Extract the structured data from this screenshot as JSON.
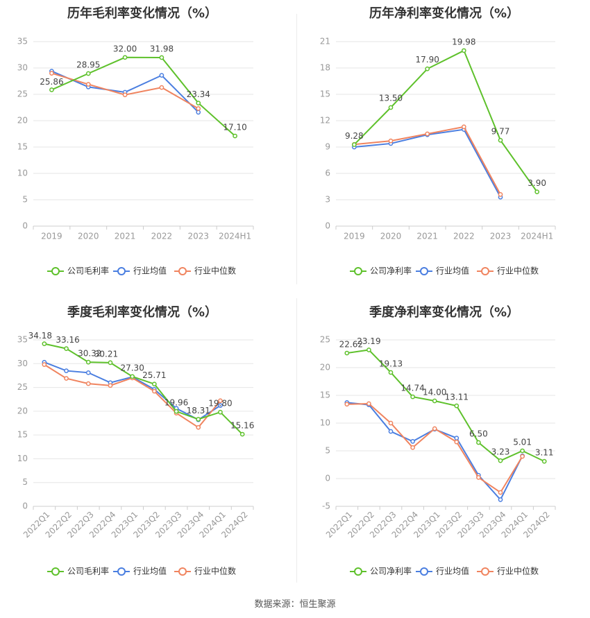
{
  "colors": {
    "company": "#5ec12b",
    "industry_avg": "#4a7ee0",
    "industry_median": "#f0845f",
    "grid": "#e6e6e6",
    "axis_text": "#999999",
    "label_text": "#444444",
    "title_text": "#333333"
  },
  "source_text": "数据来源：恒生聚源",
  "chart_data": [
    {
      "type": "line",
      "title": "历年毛利率变化情况（%）",
      "categories": [
        "2019",
        "2020",
        "2021",
        "2022",
        "2023",
        "2024H1"
      ],
      "ylim": [
        0,
        35
      ],
      "yticks": [
        0,
        5,
        10,
        15,
        20,
        25,
        30,
        35
      ],
      "series": [
        {
          "name": "公司毛利率",
          "key": "company",
          "values": [
            25.86,
            28.95,
            32.0,
            31.98,
            23.34,
            17.1
          ],
          "labels": [
            "25.86",
            "28.95",
            "32.00",
            "31.98",
            "23.34",
            "17.10"
          ]
        },
        {
          "name": "行业均值",
          "key": "industry_avg",
          "values": [
            29.4,
            26.4,
            25.4,
            28.6,
            21.6,
            null
          ]
        },
        {
          "name": "行业中位数",
          "key": "industry_median",
          "values": [
            29.0,
            26.9,
            24.9,
            26.3,
            22.3,
            null
          ]
        }
      ]
    },
    {
      "type": "line",
      "title": "历年净利率变化情况（%）",
      "categories": [
        "2019",
        "2020",
        "2021",
        "2022",
        "2023",
        "2024H1"
      ],
      "ylim": [
        0,
        21
      ],
      "yticks": [
        0,
        3,
        6,
        9,
        12,
        15,
        18,
        21
      ],
      "series": [
        {
          "name": "公司净利率",
          "key": "company",
          "values": [
            9.28,
            13.5,
            17.9,
            19.98,
            9.77,
            3.9
          ],
          "labels": [
            "9.28",
            "13.50",
            "17.90",
            "19.98",
            "9.77",
            "3.90"
          ]
        },
        {
          "name": "行业均值",
          "key": "industry_avg",
          "values": [
            9.0,
            9.4,
            10.4,
            11.0,
            3.3,
            null
          ]
        },
        {
          "name": "行业中位数",
          "key": "industry_median",
          "values": [
            9.3,
            9.7,
            10.5,
            11.3,
            3.6,
            null
          ]
        }
      ]
    },
    {
      "type": "line",
      "title": "季度毛利率变化情况（%）",
      "categories": [
        "2022Q1",
        "2022Q2",
        "2022Q3",
        "2022Q4",
        "2023Q1",
        "2023Q2",
        "2023Q3",
        "2023Q4",
        "2024Q1",
        "2024Q2"
      ],
      "ylim": [
        0,
        35
      ],
      "yticks": [
        0,
        5,
        10,
        15,
        20,
        25,
        30,
        35
      ],
      "rotate_xticks": true,
      "series": [
        {
          "name": "公司毛利率",
          "key": "company",
          "values": [
            34.18,
            33.16,
            30.32,
            30.21,
            27.3,
            25.71,
            19.96,
            18.31,
            19.8,
            15.16
          ],
          "labels": [
            "34.18",
            "33.16",
            "30.32",
            "30.21",
            "27.30",
            "25.71",
            "19.96",
            "18.31",
            "19.80",
            "15.16"
          ]
        },
        {
          "name": "行业均值",
          "key": "industry_avg",
          "values": [
            30.3,
            28.5,
            28.1,
            26.0,
            27.2,
            24.6,
            20.6,
            18.2,
            21.2,
            null
          ]
        },
        {
          "name": "行业中位数",
          "key": "industry_median",
          "values": [
            29.8,
            26.9,
            25.8,
            25.4,
            27.0,
            24.2,
            19.6,
            16.6,
            22.2,
            null
          ]
        }
      ]
    },
    {
      "type": "line",
      "title": "季度净利率变化情况（%）",
      "categories": [
        "2022Q1",
        "2022Q2",
        "2022Q3",
        "2022Q4",
        "2023Q1",
        "2023Q2",
        "2023Q3",
        "2023Q4",
        "2024Q1",
        "2024Q2"
      ],
      "ylim": [
        -5,
        25
      ],
      "yticks": [
        -5,
        0,
        5,
        10,
        15,
        20,
        25
      ],
      "rotate_xticks": true,
      "series": [
        {
          "name": "公司净利率",
          "key": "company",
          "values": [
            22.62,
            23.19,
            19.13,
            14.74,
            14.0,
            13.11,
            6.5,
            3.23,
            5.01,
            3.11
          ],
          "labels": [
            "22.62",
            "23.19",
            "19.13",
            "14.74",
            "14.00",
            "13.11",
            "6.50",
            "3.23",
            "5.01",
            "3.11"
          ]
        },
        {
          "name": "行业均值",
          "key": "industry_avg",
          "values": [
            13.7,
            13.3,
            8.5,
            6.7,
            8.9,
            7.3,
            0.6,
            -3.8,
            4.1,
            null
          ]
        },
        {
          "name": "行业中位数",
          "key": "industry_median",
          "values": [
            13.4,
            13.5,
            10.0,
            5.6,
            9.0,
            6.6,
            0.2,
            -2.5,
            4.0,
            null
          ]
        }
      ]
    }
  ]
}
